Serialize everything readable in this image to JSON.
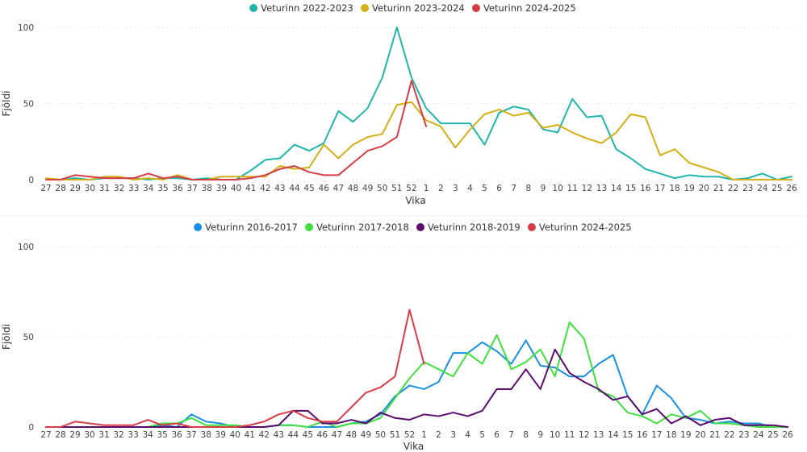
{
  "chart_data": [
    {
      "type": "line",
      "xlabel": "Vika",
      "ylabel": "Fjöldi",
      "ylim": [
        0,
        100
      ],
      "yticks": [
        0,
        50,
        100
      ],
      "grid": true,
      "legend_position": "top-center",
      "categories": [
        "27",
        "28",
        "29",
        "30",
        "31",
        "32",
        "33",
        "34",
        "35",
        "36",
        "37",
        "38",
        "39",
        "40",
        "41",
        "42",
        "43",
        "44",
        "45",
        "46",
        "47",
        "48",
        "49",
        "50",
        "51",
        "52",
        "1",
        "2",
        "3",
        "4",
        "5",
        "6",
        "7",
        "8",
        "9",
        "10",
        "11",
        "12",
        "13",
        "14",
        "15",
        "16",
        "17",
        "18",
        "19",
        "20",
        "21",
        "22",
        "23",
        "24",
        "25",
        "26"
      ],
      "series": [
        {
          "name": "Veturinn 2022-2023",
          "color": "#1fb5ac",
          "values": [
            0,
            0,
            1,
            0,
            1,
            1,
            1,
            0,
            1,
            1,
            0,
            1,
            0,
            0,
            6,
            13,
            14,
            23,
            19,
            24,
            45,
            38,
            47,
            67,
            100,
            67,
            47,
            37,
            37,
            37,
            23,
            44,
            48,
            46,
            33,
            31,
            53,
            41,
            42,
            20,
            14,
            7,
            4,
            1,
            3,
            2,
            2,
            0,
            1,
            4,
            0,
            2
          ]
        },
        {
          "name": "Veturinn 2023-2024",
          "color": "#d4ae15",
          "values": [
            1,
            0,
            0,
            0,
            2,
            2,
            0,
            1,
            0,
            3,
            0,
            0,
            2,
            2,
            2,
            2,
            9,
            7,
            8,
            23,
            14,
            23,
            28,
            30,
            49,
            51,
            39,
            35,
            21,
            33,
            43,
            46,
            42,
            44,
            34,
            36,
            31,
            27,
            24,
            31,
            43,
            41,
            16,
            20,
            11,
            8,
            5,
            0,
            0,
            0,
            0,
            0
          ]
        },
        {
          "name": "Veturinn 2024-2025",
          "color": "#d63c46",
          "values": [
            0,
            0,
            3,
            2,
            1,
            1,
            1,
            4,
            1,
            2,
            0,
            0,
            0,
            0,
            1,
            3,
            7,
            9,
            5,
            3,
            3,
            11,
            19,
            22,
            28,
            65,
            35,
            null,
            null,
            null,
            null,
            null,
            null,
            null,
            null,
            null,
            null,
            null,
            null,
            null,
            null,
            null,
            null,
            null,
            null,
            null,
            null,
            null,
            null,
            null,
            null,
            null
          ]
        }
      ]
    },
    {
      "type": "line",
      "xlabel": "Vika",
      "ylabel": "Fjöldi",
      "ylim": [
        0,
        100
      ],
      "yticks": [
        0,
        50,
        100
      ],
      "grid": true,
      "legend_position": "top-center",
      "categories": [
        "27",
        "28",
        "29",
        "30",
        "31",
        "32",
        "33",
        "34",
        "35",
        "36",
        "37",
        "38",
        "39",
        "40",
        "41",
        "42",
        "43",
        "44",
        "45",
        "46",
        "47",
        "48",
        "49",
        "50",
        "51",
        "52",
        "1",
        "2",
        "3",
        "4",
        "5",
        "6",
        "7",
        "8",
        "9",
        "10",
        "11",
        "12",
        "13",
        "14",
        "15",
        "16",
        "17",
        "18",
        "19",
        "20",
        "21",
        "22",
        "23",
        "24",
        "25",
        "26"
      ],
      "series": [
        {
          "name": "Veturinn 2016-2017",
          "color": "#1a8fe3",
          "values": [
            0,
            0,
            0,
            0,
            0,
            0,
            0,
            0,
            1,
            0,
            7,
            3,
            2,
            0,
            0,
            0,
            1,
            1,
            0,
            0,
            0,
            2,
            3,
            7,
            17,
            23,
            21,
            25,
            41,
            41,
            47,
            42,
            35,
            48,
            34,
            33,
            28,
            28,
            35,
            40,
            17,
            7,
            23,
            16,
            5,
            4,
            2,
            3,
            2,
            2,
            0,
            0
          ]
        },
        {
          "name": "Veturinn 2017-2018",
          "color": "#3ee03e",
          "values": [
            0,
            0,
            0,
            0,
            0,
            0,
            0,
            0,
            2,
            2,
            5,
            1,
            1,
            1,
            0,
            0,
            1,
            1,
            0,
            3,
            0,
            2,
            2,
            5,
            16,
            27,
            36,
            32,
            28,
            41,
            35,
            51,
            32,
            36,
            43,
            28,
            58,
            49,
            20,
            17,
            8,
            6,
            2,
            7,
            5,
            9,
            2,
            2,
            1,
            0,
            0,
            0
          ]
        },
        {
          "name": "Veturinn 2018-2019",
          "color": "#5a0c6e",
          "values": [
            0,
            0,
            0,
            0,
            0,
            0,
            0,
            0,
            0,
            0,
            0,
            0,
            0,
            0,
            0,
            0,
            1,
            9,
            9,
            2,
            2,
            4,
            2,
            8,
            5,
            4,
            7,
            6,
            8,
            6,
            9,
            21,
            21,
            32,
            21,
            43,
            30,
            25,
            21,
            15,
            17,
            7,
            10,
            2,
            6,
            1,
            4,
            5,
            1,
            1,
            1,
            0
          ]
        },
        {
          "name": "Veturinn 2024-2025",
          "color": "#d63c46",
          "values": [
            0,
            0,
            3,
            2,
            1,
            1,
            1,
            4,
            1,
            2,
            0,
            0,
            0,
            0,
            1,
            3,
            7,
            9,
            5,
            3,
            3,
            11,
            19,
            22,
            28,
            65,
            35,
            null,
            null,
            null,
            null,
            null,
            null,
            null,
            null,
            null,
            null,
            null,
            null,
            null,
            null,
            null,
            null,
            null,
            null,
            null,
            null,
            null,
            null,
            null,
            null,
            null
          ]
        }
      ]
    }
  ]
}
